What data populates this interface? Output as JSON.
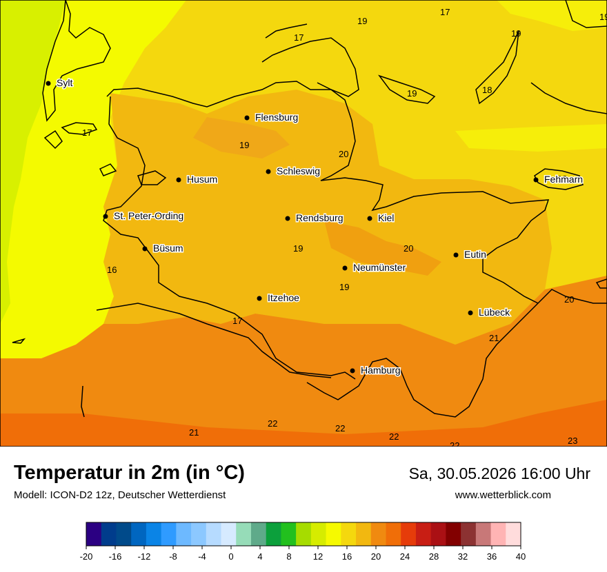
{
  "title": "Temperatur in 2m (in °C)",
  "subtitle": "Modell: ICON-D2 12z, Deutscher Wetterdienst",
  "datetime": "Sa, 30.05.2026 16:00 Uhr",
  "website": "www.wetterblick.com",
  "cities": [
    {
      "name": "Sylt"
    },
    {
      "name": "Flensburg"
    },
    {
      "name": "Schleswig"
    },
    {
      "name": "Husum"
    },
    {
      "name": "St. Peter-Ording"
    },
    {
      "name": "Rendsburg"
    },
    {
      "name": "Kiel"
    },
    {
      "name": "Büsum"
    },
    {
      "name": "Neumünster"
    },
    {
      "name": "Eutin"
    },
    {
      "name": "Fehmarn"
    },
    {
      "name": "Itzehoe"
    },
    {
      "name": "Lübeck"
    },
    {
      "name": "Hamburg"
    }
  ],
  "isotherm_labels": [
    "17",
    "19",
    "17",
    "19",
    "19",
    "18",
    "19",
    "17",
    "19",
    "20",
    "19",
    "16",
    "20",
    "19",
    "19",
    "17",
    "20",
    "21",
    "21",
    "22",
    "22",
    "22",
    "22",
    "23"
  ],
  "colorbar": {
    "ticks": [
      "-20",
      "-16",
      "-12",
      "-8",
      "-4",
      "0",
      "4",
      "8",
      "12",
      "16",
      "20",
      "24",
      "28",
      "32",
      "36",
      "40"
    ],
    "colors": [
      "#2b0082",
      "#003c8c",
      "#004a8a",
      "#0066c0",
      "#0a84e6",
      "#2f9bff",
      "#6db9ff",
      "#8cc8ff",
      "#b6dbff",
      "#d6eaff",
      "#96dcb8",
      "#5faa8a",
      "#0ca03c",
      "#22c01e",
      "#a6dc00",
      "#d6ec00",
      "#f6fa00",
      "#f4d80e",
      "#f2b810",
      "#f08a10",
      "#f06e08",
      "#e63c0a",
      "#c81e14",
      "#aa1014",
      "#820000",
      "#8c3232",
      "#c87878",
      "#ffb4b4",
      "#ffdcdc"
    ]
  },
  "temperature_colors": {
    "t16": "#d8f000",
    "t17": "#f4fa00",
    "t18": "#f4d80e",
    "t20": "#f2b810",
    "t22": "#f08a10",
    "t24": "#f06e08"
  }
}
